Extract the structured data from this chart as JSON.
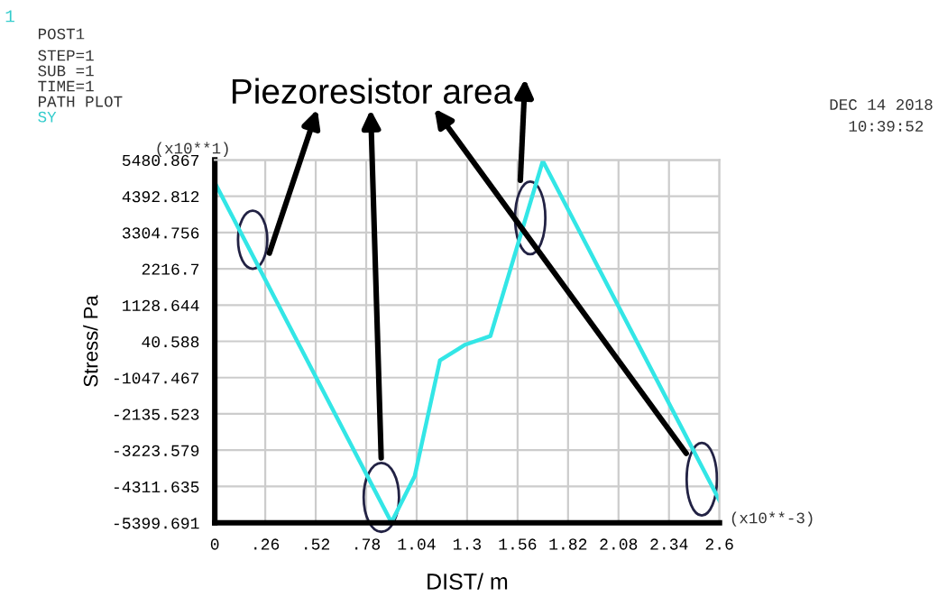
{
  "chart_data": {
    "type": "line",
    "xlabel": "DIST/ m",
    "ylabel": "Stress/ Pa",
    "x": [
      0,
      0.91,
      1.03,
      1.16,
      1.29,
      1.42,
      1.69,
      2.6
    ],
    "series": [
      {
        "color": "#33e6e6",
        "values": [
          4800,
          -5390,
          -4000,
          -530,
          -60,
          200,
          5450,
          -4730
        ]
      }
    ],
    "xlim": [
      0,
      2.6
    ],
    "ylim": [
      -5399.691,
      5480.867
    ],
    "xticks": [
      0,
      {
        "value": 0.26,
        "label": ".26"
      },
      {
        "value": 0.52,
        "label": ".52"
      },
      {
        "value": 0.78,
        "label": ".78"
      },
      1.04,
      1.3,
      1.56,
      1.82,
      2.08,
      2.34,
      2.6
    ],
    "yticks": [
      -5399.691,
      -4311.635,
      -3223.579,
      -2135.523,
      -1047.467,
      40.588,
      1128.644,
      2216.7,
      3304.756,
      4392.812,
      5480.867
    ],
    "grid": true,
    "legend": false,
    "marker": "none",
    "line_style": "solid",
    "annotations": [
      "1",
      "POST1",
      "STEP=1",
      "SUB =1",
      "TIME=1",
      "PATH PLOT",
      "SY",
      "DEC 14 2018",
      "10:39:52",
      "(x10**1)",
      "(x10**-3)",
      "Piezoresistor area"
    ]
  }
}
